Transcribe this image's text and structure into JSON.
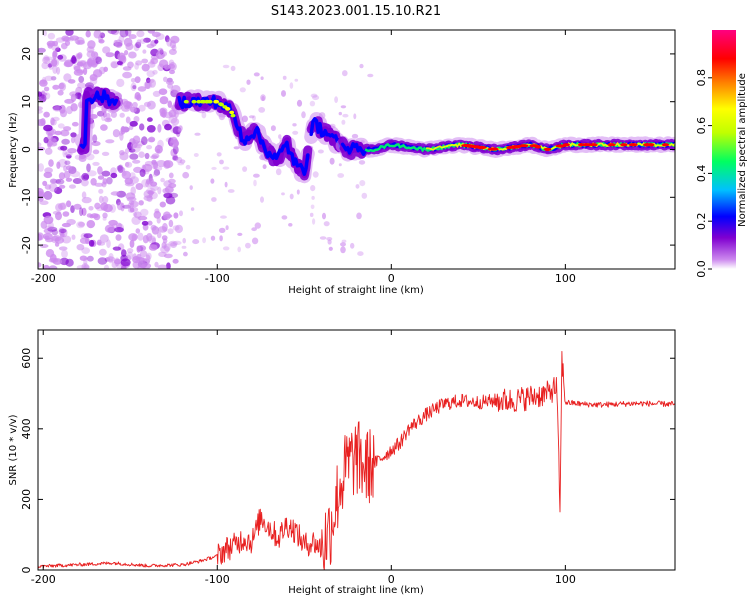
{
  "title": "S143.2023.001.15.10.R21",
  "chart_data": [
    {
      "type": "heatmap",
      "xlabel": "Height of straight line (km)",
      "ylabel": "Frequency (Hz)",
      "xlim": [
        -203,
        163
      ],
      "ylim": [
        -25,
        25
      ],
      "x_ticks": [
        -200,
        -100,
        0,
        100
      ],
      "y_ticks": [
        20,
        10,
        0,
        -10,
        -20
      ],
      "colorbar": {
        "label": "Normalized spectral amplitude",
        "range": [
          0,
          1
        ],
        "ticks": [
          0.0,
          0.2,
          0.4,
          0.6,
          0.8
        ],
        "colors": [
          "#ffffff",
          "#cc88ee",
          "#8000d0",
          "#0000ff",
          "#00c0ff",
          "#00ff60",
          "#c0ff00",
          "#ffff00",
          "#ff8000",
          "#ff0000",
          "#ff0080"
        ]
      },
      "ridge": {
        "x": [
          -175,
          -165,
          -160,
          -120,
          -110,
          -100,
          -92,
          -85,
          -78,
          -72,
          -66,
          -60,
          -55,
          -50,
          -45,
          -40,
          -35,
          -30,
          -25,
          -20,
          -15,
          -10,
          0,
          20,
          40,
          60,
          80,
          90,
          100,
          120,
          140,
          163
        ],
        "y": [
          11,
          11,
          10,
          10,
          10,
          10,
          8,
          2,
          4,
          0,
          -2,
          1,
          -3,
          -5,
          6,
          4,
          3,
          1,
          0,
          0,
          0,
          0,
          1,
          0,
          1,
          0,
          1,
          0,
          1,
          1,
          1,
          1
        ]
      }
    },
    {
      "type": "line",
      "xlabel": "Height of straight line (km)",
      "ylabel": "SNR (10 * v/v)",
      "xlim": [
        -203,
        163
      ],
      "ylim": [
        0,
        680
      ],
      "x_ticks": [
        -200,
        -100,
        0,
        100
      ],
      "y_ticks": [
        0,
        200,
        400,
        600
      ],
      "color": "#e82020",
      "series": [
        {
          "x": [
            -203,
            -180,
            -160,
            -140,
            -120,
            -110,
            -100,
            -95,
            -90,
            -85,
            -80,
            -75,
            -70,
            -65,
            -60,
            -55,
            -50,
            -45,
            -40,
            -35,
            -30,
            -25,
            -20,
            -15,
            -10,
            -5,
            0,
            5,
            10,
            20,
            30,
            40,
            50,
            60,
            70,
            80,
            90,
            95,
            97,
            98,
            100,
            110,
            120,
            140,
            163
          ],
          "y": [
            10,
            15,
            20,
            12,
            15,
            25,
            40,
            60,
            70,
            90,
            80,
            150,
            120,
            90,
            130,
            110,
            70,
            80,
            60,
            120,
            230,
            300,
            320,
            290,
            300,
            320,
            340,
            360,
            400,
            440,
            470,
            480,
            475,
            480,
            480,
            490,
            500,
            520,
            170,
            600,
            475,
            470,
            468,
            472,
            470
          ]
        }
      ]
    }
  ]
}
